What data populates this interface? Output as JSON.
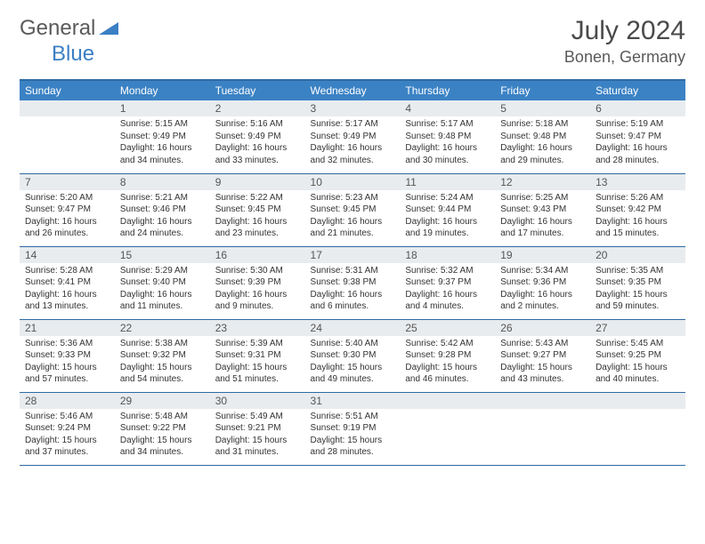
{
  "logo": {
    "text1": "General",
    "text2": "Blue"
  },
  "title": "July 2024",
  "location": "Bonen, Germany",
  "colors": {
    "header_bg": "#3b82c4",
    "header_border": "#2f6aa3",
    "daynum_bg": "#e8ecef",
    "text": "#333333",
    "title_text": "#4a4a4a"
  },
  "weekdays": [
    "Sunday",
    "Monday",
    "Tuesday",
    "Wednesday",
    "Thursday",
    "Friday",
    "Saturday"
  ],
  "weeks": [
    [
      {
        "n": "",
        "sr": "",
        "ss": "",
        "d1": "",
        "d2": ""
      },
      {
        "n": "1",
        "sr": "Sunrise: 5:15 AM",
        "ss": "Sunset: 9:49 PM",
        "d1": "Daylight: 16 hours",
        "d2": "and 34 minutes."
      },
      {
        "n": "2",
        "sr": "Sunrise: 5:16 AM",
        "ss": "Sunset: 9:49 PM",
        "d1": "Daylight: 16 hours",
        "d2": "and 33 minutes."
      },
      {
        "n": "3",
        "sr": "Sunrise: 5:17 AM",
        "ss": "Sunset: 9:49 PM",
        "d1": "Daylight: 16 hours",
        "d2": "and 32 minutes."
      },
      {
        "n": "4",
        "sr": "Sunrise: 5:17 AM",
        "ss": "Sunset: 9:48 PM",
        "d1": "Daylight: 16 hours",
        "d2": "and 30 minutes."
      },
      {
        "n": "5",
        "sr": "Sunrise: 5:18 AM",
        "ss": "Sunset: 9:48 PM",
        "d1": "Daylight: 16 hours",
        "d2": "and 29 minutes."
      },
      {
        "n": "6",
        "sr": "Sunrise: 5:19 AM",
        "ss": "Sunset: 9:47 PM",
        "d1": "Daylight: 16 hours",
        "d2": "and 28 minutes."
      }
    ],
    [
      {
        "n": "7",
        "sr": "Sunrise: 5:20 AM",
        "ss": "Sunset: 9:47 PM",
        "d1": "Daylight: 16 hours",
        "d2": "and 26 minutes."
      },
      {
        "n": "8",
        "sr": "Sunrise: 5:21 AM",
        "ss": "Sunset: 9:46 PM",
        "d1": "Daylight: 16 hours",
        "d2": "and 24 minutes."
      },
      {
        "n": "9",
        "sr": "Sunrise: 5:22 AM",
        "ss": "Sunset: 9:45 PM",
        "d1": "Daylight: 16 hours",
        "d2": "and 23 minutes."
      },
      {
        "n": "10",
        "sr": "Sunrise: 5:23 AM",
        "ss": "Sunset: 9:45 PM",
        "d1": "Daylight: 16 hours",
        "d2": "and 21 minutes."
      },
      {
        "n": "11",
        "sr": "Sunrise: 5:24 AM",
        "ss": "Sunset: 9:44 PM",
        "d1": "Daylight: 16 hours",
        "d2": "and 19 minutes."
      },
      {
        "n": "12",
        "sr": "Sunrise: 5:25 AM",
        "ss": "Sunset: 9:43 PM",
        "d1": "Daylight: 16 hours",
        "d2": "and 17 minutes."
      },
      {
        "n": "13",
        "sr": "Sunrise: 5:26 AM",
        "ss": "Sunset: 9:42 PM",
        "d1": "Daylight: 16 hours",
        "d2": "and 15 minutes."
      }
    ],
    [
      {
        "n": "14",
        "sr": "Sunrise: 5:28 AM",
        "ss": "Sunset: 9:41 PM",
        "d1": "Daylight: 16 hours",
        "d2": "and 13 minutes."
      },
      {
        "n": "15",
        "sr": "Sunrise: 5:29 AM",
        "ss": "Sunset: 9:40 PM",
        "d1": "Daylight: 16 hours",
        "d2": "and 11 minutes."
      },
      {
        "n": "16",
        "sr": "Sunrise: 5:30 AM",
        "ss": "Sunset: 9:39 PM",
        "d1": "Daylight: 16 hours",
        "d2": "and 9 minutes."
      },
      {
        "n": "17",
        "sr": "Sunrise: 5:31 AM",
        "ss": "Sunset: 9:38 PM",
        "d1": "Daylight: 16 hours",
        "d2": "and 6 minutes."
      },
      {
        "n": "18",
        "sr": "Sunrise: 5:32 AM",
        "ss": "Sunset: 9:37 PM",
        "d1": "Daylight: 16 hours",
        "d2": "and 4 minutes."
      },
      {
        "n": "19",
        "sr": "Sunrise: 5:34 AM",
        "ss": "Sunset: 9:36 PM",
        "d1": "Daylight: 16 hours",
        "d2": "and 2 minutes."
      },
      {
        "n": "20",
        "sr": "Sunrise: 5:35 AM",
        "ss": "Sunset: 9:35 PM",
        "d1": "Daylight: 15 hours",
        "d2": "and 59 minutes."
      }
    ],
    [
      {
        "n": "21",
        "sr": "Sunrise: 5:36 AM",
        "ss": "Sunset: 9:33 PM",
        "d1": "Daylight: 15 hours",
        "d2": "and 57 minutes."
      },
      {
        "n": "22",
        "sr": "Sunrise: 5:38 AM",
        "ss": "Sunset: 9:32 PM",
        "d1": "Daylight: 15 hours",
        "d2": "and 54 minutes."
      },
      {
        "n": "23",
        "sr": "Sunrise: 5:39 AM",
        "ss": "Sunset: 9:31 PM",
        "d1": "Daylight: 15 hours",
        "d2": "and 51 minutes."
      },
      {
        "n": "24",
        "sr": "Sunrise: 5:40 AM",
        "ss": "Sunset: 9:30 PM",
        "d1": "Daylight: 15 hours",
        "d2": "and 49 minutes."
      },
      {
        "n": "25",
        "sr": "Sunrise: 5:42 AM",
        "ss": "Sunset: 9:28 PM",
        "d1": "Daylight: 15 hours",
        "d2": "and 46 minutes."
      },
      {
        "n": "26",
        "sr": "Sunrise: 5:43 AM",
        "ss": "Sunset: 9:27 PM",
        "d1": "Daylight: 15 hours",
        "d2": "and 43 minutes."
      },
      {
        "n": "27",
        "sr": "Sunrise: 5:45 AM",
        "ss": "Sunset: 9:25 PM",
        "d1": "Daylight: 15 hours",
        "d2": "and 40 minutes."
      }
    ],
    [
      {
        "n": "28",
        "sr": "Sunrise: 5:46 AM",
        "ss": "Sunset: 9:24 PM",
        "d1": "Daylight: 15 hours",
        "d2": "and 37 minutes."
      },
      {
        "n": "29",
        "sr": "Sunrise: 5:48 AM",
        "ss": "Sunset: 9:22 PM",
        "d1": "Daylight: 15 hours",
        "d2": "and 34 minutes."
      },
      {
        "n": "30",
        "sr": "Sunrise: 5:49 AM",
        "ss": "Sunset: 9:21 PM",
        "d1": "Daylight: 15 hours",
        "d2": "and 31 minutes."
      },
      {
        "n": "31",
        "sr": "Sunrise: 5:51 AM",
        "ss": "Sunset: 9:19 PM",
        "d1": "Daylight: 15 hours",
        "d2": "and 28 minutes."
      },
      {
        "n": "",
        "sr": "",
        "ss": "",
        "d1": "",
        "d2": ""
      },
      {
        "n": "",
        "sr": "",
        "ss": "",
        "d1": "",
        "d2": ""
      },
      {
        "n": "",
        "sr": "",
        "ss": "",
        "d1": "",
        "d2": ""
      }
    ]
  ]
}
